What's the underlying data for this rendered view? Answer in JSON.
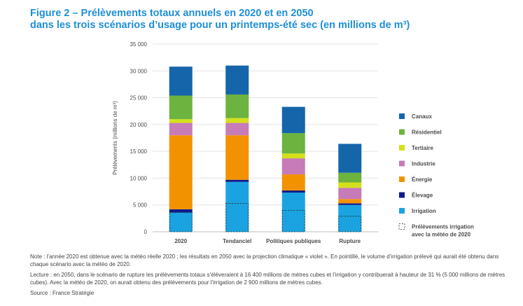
{
  "title_line1": "Figure 2 – Prélèvements totaux annuels en 2020 et en 2050",
  "title_line2": "dans les trois scénarios d’usage pour un printemps-été sec (en millions de m³)",
  "notes": {
    "note": "Note : l’année 2020 est obtenue avec la météo réelle 2020 ; les résultats en 2050 avec la projection climatique « violet ». En pointillé, le volume d’irrigation prélevé qui aurait été obtenu dans chaque scénario avec la météo de 2020.",
    "lecture": "Lecture : en 2050, dans le scénario de rupture les prélèvements totaux s’élèveraient à 16 400 millions de mètres cubes et l’irrigation y contribuerait à hauteur de 31 % (5 000 millions de mètres cubes). Avec la météo de 2020, on aurait obtenu des prélèvements pour l’irrigation de 2 900 millions de mètres cubes.",
    "source": "Source : France Stratégie"
  },
  "chart_data": {
    "type": "bar",
    "stacked": true,
    "categories": [
      "2020",
      "Tendanciel",
      "Politiques publiques",
      "Rupture"
    ],
    "ylabel": "Prélèvements (millions de m³)",
    "ylim": [
      0,
      35000
    ],
    "yticks": [
      0,
      5000,
      10000,
      15000,
      20000,
      25000,
      30000,
      35000
    ],
    "ytick_labels": [
      "0",
      "5 000",
      "10 000",
      "15 000",
      "20 000",
      "25 000",
      "30 000",
      "35 000"
    ],
    "grid": true,
    "legend_position": "right",
    "series": [
      {
        "name": "Irrigation",
        "color": "#1aa3e0",
        "values": [
          3600,
          9300,
          7300,
          5000
        ]
      },
      {
        "name": "Élevage",
        "color": "#0d1b8c",
        "values": [
          600,
          400,
          400,
          300
        ]
      },
      {
        "name": "Énergie",
        "color": "#f39200",
        "values": [
          13800,
          8300,
          3000,
          800
        ]
      },
      {
        "name": "Industrie",
        "color": "#c77bb8",
        "values": [
          2300,
          2300,
          3000,
          2100
        ]
      },
      {
        "name": "Tertiaire",
        "color": "#d4e11a",
        "values": [
          700,
          900,
          900,
          1000
        ]
      },
      {
        "name": "Résidentiel",
        "color": "#6cb33f",
        "values": [
          4400,
          4400,
          3800,
          1800
        ]
      },
      {
        "name": "Canaux",
        "color": "#1565ab",
        "values": [
          5400,
          5400,
          4900,
          5400
        ]
      }
    ],
    "irrigation_meteo_2020": {
      "name": "Prélèvements irrigation avec la météo de 2020",
      "values": [
        3600,
        5300,
        4000,
        2900
      ]
    }
  }
}
